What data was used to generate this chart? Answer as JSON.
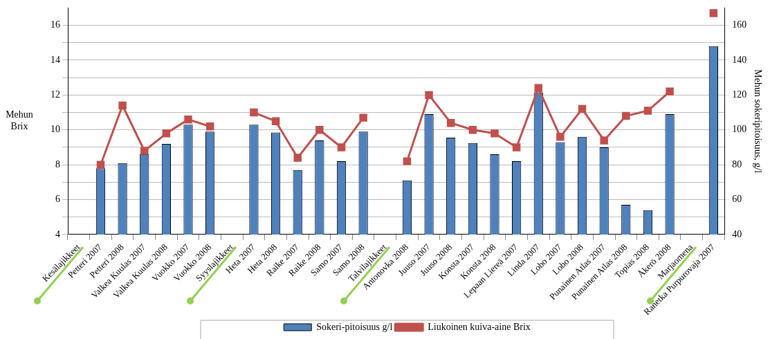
{
  "chart_data": {
    "type": "bar",
    "categories": [
      "Kesälajikkeet",
      "Petteri 2007",
      "Petteri 2008",
      "Valkea Kuulas 2007",
      "Valkea Kuulas 2008",
      "Vuokko 2007",
      "Vuokko 2008",
      "Syyslajikkeet",
      "Heta 2007",
      "Heta 2008",
      "Raike 2007",
      "Raike 2008",
      "Samo 2007",
      "Samo 2008",
      "Talvilajikkeet",
      "Antonovka 2008",
      "Juuso 2007",
      "Juuso 2008",
      "Konsta 2007",
      "Konsta 2008",
      "Lepaan Liereä 2007",
      "Linda 2007",
      "Lobo 2007",
      "Lobo 2008",
      "Punainen Atlas 2007",
      "Punainen Atlas 2008",
      "Topias 2008",
      "Åkerö 2008",
      "Marjaomena",
      "Ranetka Purpurovaja 2007"
    ],
    "series": [
      {
        "name": "Sokeri-pitoisuus g/l",
        "axis": "y2",
        "color": "#4f81bd",
        "values": [
          null,
          78,
          81,
          86,
          92,
          103,
          99,
          null,
          103,
          98.5,
          77,
          94,
          82,
          99,
          null,
          71,
          109,
          95.5,
          92.5,
          86,
          82,
          121.5,
          93,
          96,
          90,
          57,
          54,
          109,
          null,
          148
        ]
      },
      {
        "name": "Liukoinen kuiva-aine Brix",
        "type": "line",
        "color": "#c0504d",
        "marker": "square",
        "values": [
          null,
          8.0,
          11.4,
          8.8,
          9.8,
          10.6,
          10.2,
          null,
          11.0,
          10.5,
          8.4,
          10.0,
          9.0,
          10.7,
          null,
          8.2,
          12.0,
          10.4,
          10.0,
          9.8,
          9.0,
          12.4,
          9.6,
          11.2,
          9.4,
          10.8,
          11.1,
          12.2,
          null,
          16.7
        ]
      }
    ],
    "ylabel": "Mehun Brix",
    "y2label": "Mehun sokeripitoisuus, g/l",
    "ylim": [
      4,
      17
    ],
    "yticks": [
      4,
      {
        "value": 5,
        "label": null
      },
      6,
      {
        "value": 7,
        "label": null
      },
      8,
      {
        "value": 9,
        "label": null
      },
      10,
      {
        "value": 11,
        "label": null
      },
      12,
      {
        "value": 13,
        "label": null
      },
      14,
      {
        "value": 15,
        "label": null
      },
      16
    ],
    "y2lim": [
      40,
      170
    ],
    "y2ticks": [
      40,
      60,
      80,
      100,
      120,
      140,
      160
    ],
    "grid": "y",
    "legend": "bottom"
  }
}
